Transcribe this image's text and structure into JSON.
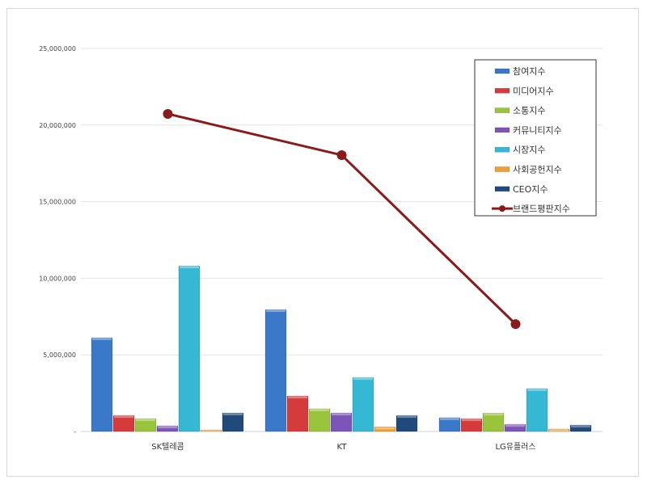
{
  "chart_data": {
    "type": "bar",
    "categories": [
      "SK텔레콤",
      "KT",
      "LG유플러스"
    ],
    "ylim": [
      0,
      25000000
    ],
    "yticks": [
      "-",
      "5,000,000",
      "10,000,000",
      "15,000,000",
      "20,000,000",
      "25,000,000"
    ],
    "ytick_values": [
      0,
      5000000,
      10000000,
      15000000,
      20000000,
      25000000
    ],
    "grid": true,
    "legend_position": "top-right",
    "series": [
      {
        "name": "참여지수",
        "kind": "bar",
        "color": "#3a78c9",
        "values": [
          6120000,
          7960000,
          900000
        ]
      },
      {
        "name": "미디어지수",
        "kind": "bar",
        "color": "#d63b3b",
        "values": [
          1050000,
          2320000,
          840000
        ]
      },
      {
        "name": "소통지수",
        "kind": "bar",
        "color": "#9ac43c",
        "values": [
          840000,
          1480000,
          1200000
        ]
      },
      {
        "name": "커뮤니티지수",
        "kind": "bar",
        "color": "#7d55b8",
        "values": [
          370000,
          1210000,
          470000
        ]
      },
      {
        "name": "시장지수",
        "kind": "bar",
        "color": "#34b8d4",
        "values": [
          10810000,
          3530000,
          2800000
        ]
      },
      {
        "name": "사회공헌지수",
        "kind": "bar",
        "color": "#f0a030",
        "values": [
          100000,
          300000,
          160000
        ]
      },
      {
        "name": "CEO지수",
        "kind": "bar",
        "color": "#1f4a7a",
        "values": [
          1210000,
          1050000,
          420000
        ]
      },
      {
        "name": "브랜드평판지수",
        "kind": "line",
        "color": "#8b1a1a",
        "values": [
          20730000,
          18040000,
          7010000
        ]
      }
    ]
  }
}
